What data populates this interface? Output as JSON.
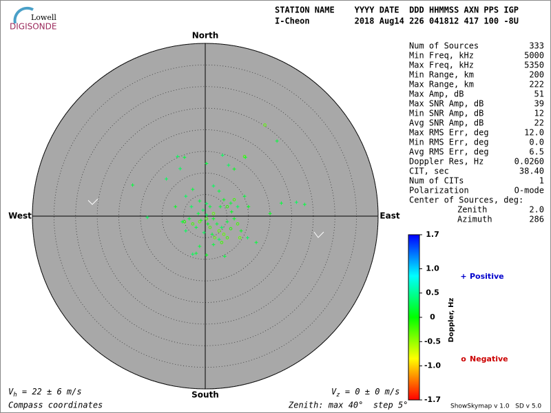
{
  "logo": {
    "top": "Lowell",
    "bottom": "DIGISONDE"
  },
  "header": {
    "row1": "STATION NAME    YYYY DATE  DDD HHMMSS AXN PPS IGP",
    "row2": "I-Cheon         2018 Aug14 226 041812 417 100 -8U"
  },
  "stats": [
    [
      "Num of Sources",
      "333"
    ],
    [
      "Min Freq, kHz",
      "5000"
    ],
    [
      "Max Freq, kHz",
      "5350"
    ],
    [
      "Min Range, km",
      "200"
    ],
    [
      "Max Range, km",
      "222"
    ],
    [
      "Max Amp, dB",
      "51"
    ],
    [
      "Max SNR Amp, dB",
      "39"
    ],
    [
      "Min SNR Amp, dB",
      "12"
    ],
    [
      "Avg SNR Amp, dB",
      "22"
    ],
    [
      "Max RMS Err, deg",
      "12.0"
    ],
    [
      "Min RMS Err, deg",
      "0.0"
    ],
    [
      "Avg RMS Err, deg",
      "6.5"
    ],
    [
      "Doppler Res, Hz",
      "0.0260"
    ],
    [
      "CIT, sec",
      "38.40"
    ],
    [
      "Num of CITs",
      "1"
    ],
    [
      "Polarization",
      "O-mode"
    ]
  ],
  "center": {
    "title": "Center of Sources, deg:",
    "rows": [
      [
        "Zenith",
        "2.0"
      ],
      [
        "Azimuth",
        "286"
      ]
    ]
  },
  "chart_data": {
    "type": "skymap",
    "directions": {
      "north": "North",
      "south": "South",
      "east": "East",
      "west": "West"
    },
    "xlim": [
      -40,
      40
    ],
    "ylim": [
      -40,
      40
    ],
    "rings": [
      5,
      10,
      15,
      20,
      25,
      30,
      35,
      40
    ],
    "series": [
      {
        "name": "Positive",
        "marker": "+",
        "color": "#0000cc",
        "x": [
          16.6,
          -6.4,
          -4.8,
          -9,
          -16.8,
          -5.8,
          0.3,
          4,
          6.7,
          9.3,
          5.4,
          17.6,
          21.1,
          23,
          15,
          -13.4,
          11.8,
          9.8,
          8.3,
          -2.1,
          -2.9,
          -1.3,
          0.3,
          4.5,
          3.2,
          1.9,
          -6.9,
          -4.5,
          -2.9,
          1.9,
          3.2,
          4.3,
          5.9,
          7.5,
          9.1,
          10,
          -5.3,
          -4.5,
          -2.1,
          -1,
          0.3,
          1.1,
          -0.5,
          -1.6,
          1.9,
          2.7,
          3.8,
          5.1,
          6.7,
          0.3,
          -1.3,
          -3.2,
          -3.7,
          0.6,
          1.6,
          -0.3,
          3.5,
          6.1
        ],
        "y": [
          17.4,
          13.8,
          13.6,
          8.6,
          7.2,
          11,
          12.2,
          14.1,
          10.9,
          13.6,
          11.8,
          3,
          3.2,
          2.7,
          0.6,
          -0.3,
          -6.1,
          -5,
          -3.4,
          -8.6,
          -8.8,
          -7,
          -9,
          -9.3,
          -5.4,
          -6.6,
          2.2,
          4.6,
          6.2,
          7,
          5.8,
          3.8,
          3,
          2.2,
          4.6,
          2.2,
          -1.3,
          -3.4,
          -2.6,
          -1,
          0.3,
          2.2,
          1.4,
          0.6,
          -0.6,
          -1.8,
          -2.6,
          -1.3,
          -0.6,
          2.9,
          3.5,
          2.2,
          -0.6,
          -1.8,
          -4.2,
          -3.8,
          2.2,
          1
        ],
        "doppler": [
          0.2,
          0.3,
          0.2,
          0.3,
          0.2,
          0.3,
          0.2,
          0.3,
          0.1,
          0.2,
          0.3,
          0.2,
          0.3,
          0.2,
          0.1,
          0.3,
          0.2,
          0.3,
          0.1,
          0.2,
          0.3,
          0.2,
          0.1,
          0.2,
          0.3,
          0.2,
          0.1,
          0.3,
          0.2,
          0.3,
          0.2,
          0.1,
          0.2,
          0.3,
          0.2,
          0.1,
          0.2,
          0.3,
          0.2,
          0.1,
          0.3,
          0.2,
          0.3,
          0.2,
          0.1,
          0.2,
          0.3,
          0.2,
          0.1,
          0.3,
          0.2,
          0.3,
          0.2,
          0.1,
          0.2,
          0.3,
          0.2,
          0.1
        ]
      },
      {
        "name": "Negative",
        "marker": "o",
        "color": "#cc0000",
        "x": [
          13.8,
          9.1,
          4.3,
          5.1,
          3.2,
          1.1,
          2.2,
          3.8,
          5.9,
          7.5,
          -1.3,
          -2.9,
          -4.8,
          0.3,
          1.9,
          6.7,
          5.1,
          8
        ],
        "y": [
          21.1,
          13.8,
          -4.2,
          -5,
          -3.4,
          -2.6,
          -5,
          -6.1,
          -2.9,
          -1.8,
          -1.3,
          -1.8,
          -1.3,
          -0.6,
          0.6,
          3.8,
          2.2,
          -5
        ],
        "doppler": [
          -0.3,
          -0.2,
          -0.3,
          -0.2,
          -0.3,
          -0.2,
          -0.3,
          -0.2,
          -0.1,
          -0.2,
          -0.3,
          -0.2,
          -0.1,
          -0.2,
          -0.3,
          -0.2,
          -0.1,
          -0.3
        ]
      }
    ],
    "colorbar": {
      "label": "Doppler, Hz",
      "lim": [
        -1.7,
        1.7
      ],
      "ticks": [
        1.7,
        {
          "value": 1,
          "label": "1.0"
        },
        0.5,
        0,
        -0.5,
        {
          "value": -1,
          "label": "-1.0"
        },
        -1.7
      ]
    }
  },
  "footer": {
    "vh": {
      "symbol": "V",
      "sub": "h",
      "text": " = 22 ± 6 m/s"
    },
    "vz": {
      "symbol": "V",
      "sub": "z",
      "text": " = 0 ± 0 m/s"
    },
    "coords": "Compass coordinates",
    "zenith": "Zenith: max 40°  step 5°",
    "version": "ShowSkymap v 1.0   SD v 5.0"
  }
}
